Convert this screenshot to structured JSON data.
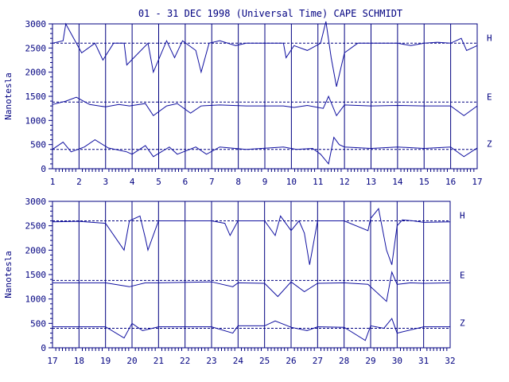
{
  "chart_data": {
    "type": "line",
    "title": "01 - 31 DEC 1998 (Universal Time) CAPE SCHMIDT",
    "ylabel": "Nanotesla",
    "components": [
      "H",
      "E",
      "Z"
    ],
    "ylim": [
      0,
      3000
    ],
    "yticks": [
      0,
      500,
      1000,
      1500,
      2000,
      2500,
      3000
    ],
    "baselines": {
      "H": 2600,
      "E": 1380,
      "Z": 400
    },
    "panels": [
      {
        "xlim": [
          1,
          17
        ],
        "xticks": [
          1,
          2,
          3,
          4,
          5,
          6,
          7,
          8,
          9,
          10,
          11,
          12,
          13,
          14,
          15,
          16,
          17
        ],
        "series": [
          {
            "name": "H",
            "x": [
              1,
              1.4,
              1.5,
              1.9,
              2.1,
              2.6,
              2.9,
              3.3,
              3.7,
              3.8,
              4.6,
              4.8,
              5.3,
              5.6,
              5.9,
              6.4,
              6.6,
              6.9,
              7.3,
              7.9,
              8.3,
              9.7,
              9.8,
              10.1,
              10.6,
              11.1,
              11.3,
              11.5,
              11.7,
              12,
              12.5,
              13,
              14,
              14.5,
              15,
              15.5,
              16,
              16.4,
              16.6,
              17
            ],
            "y": [
              2600,
              2650,
              3000,
              2600,
              2400,
              2600,
              2250,
              2600,
              2600,
              2150,
              2600,
              2000,
              2650,
              2300,
              2650,
              2450,
              2000,
              2600,
              2650,
              2550,
              2600,
              2600,
              2300,
              2550,
              2450,
              2600,
              3050,
              2300,
              1700,
              2400,
              2600,
              2600,
              2600,
              2550,
              2600,
              2620,
              2600,
              2700,
              2450,
              2550
            ]
          },
          {
            "name": "E",
            "x": [
              1,
              1.5,
              1.9,
              2.4,
              3,
              3.5,
              3.9,
              4.5,
              4.8,
              5.3,
              5.7,
              6.2,
              6.6,
              7.3,
              8.3,
              9.7,
              10.1,
              10.6,
              11.2,
              11.4,
              11.7,
              12,
              13,
              14,
              15,
              16,
              16.5,
              17
            ],
            "y": [
              1330,
              1400,
              1480,
              1330,
              1280,
              1330,
              1300,
              1350,
              1100,
              1300,
              1350,
              1150,
              1300,
              1320,
              1300,
              1300,
              1270,
              1310,
              1250,
              1500,
              1100,
              1320,
              1300,
              1310,
              1300,
              1300,
              1100,
              1300
            ]
          },
          {
            "name": "Z",
            "x": [
              1,
              1.4,
              1.7,
              2.2,
              2.6,
              3.1,
              3.8,
              4,
              4.5,
              4.8,
              5.4,
              5.7,
              6.4,
              6.8,
              7.3,
              8.3,
              9.7,
              10.2,
              10.8,
              11.1,
              11.4,
              11.6,
              11.8,
              12,
              13,
              14,
              15,
              16,
              16.5,
              17
            ],
            "y": [
              400,
              550,
              350,
              450,
              600,
              430,
              350,
              300,
              480,
              250,
              450,
              300,
              450,
              300,
              450,
              400,
              450,
              400,
              420,
              300,
              100,
              650,
              500,
              450,
              420,
              450,
              420,
              450,
              250,
              430
            ]
          }
        ]
      },
      {
        "xlim": [
          17,
          32
        ],
        "xticks": [
          17,
          18,
          19,
          20,
          21,
          22,
          23,
          24,
          25,
          26,
          27,
          28,
          29,
          30,
          31,
          32
        ],
        "series": [
          {
            "name": "H",
            "x": [
              17,
              18,
              19,
              19.7,
              19.9,
              20.3,
              20.5,
              20.6,
              21,
              22,
              23,
              23.5,
              23.7,
              24,
              25,
              25.4,
              25.6,
              26,
              26.3,
              26.5,
              26.7,
              27,
              28,
              28.9,
              29,
              29.3,
              29.6,
              29.8,
              30,
              30.2,
              30.6,
              31,
              32
            ],
            "y": [
              2580,
              2590,
              2550,
              2000,
              2600,
              2700,
              2250,
              2000,
              2600,
              2600,
              2600,
              2550,
              2300,
              2600,
              2600,
              2300,
              2700,
              2400,
              2600,
              2350,
              1700,
              2600,
              2600,
              2400,
              2650,
              2850,
              2000,
              1700,
              2500,
              2620,
              2600,
              2570,
              2580
            ]
          },
          {
            "name": "E",
            "x": [
              17,
              19,
              19.9,
              20.5,
              21,
              23,
              23.8,
              24,
              25,
              25.5,
              26,
              26.5,
              27,
              28,
              28.9,
              29.6,
              29.8,
              30,
              30.5,
              31,
              32
            ],
            "y": [
              1330,
              1330,
              1250,
              1330,
              1330,
              1350,
              1250,
              1330,
              1320,
              1050,
              1350,
              1150,
              1320,
              1330,
              1300,
              950,
              1550,
              1300,
              1330,
              1320,
              1330
            ]
          },
          {
            "name": "Z",
            "x": [
              17,
              19,
              19.7,
              20,
              20.4,
              21,
              23,
              23.8,
              24,
              25,
              25.4,
              26,
              26.6,
              27,
              28,
              28.8,
              29,
              29.5,
              29.8,
              30,
              31,
              32
            ],
            "y": [
              430,
              430,
              200,
              500,
              350,
              430,
              430,
              300,
              450,
              450,
              550,
              420,
              350,
              430,
              420,
              150,
              450,
              400,
              600,
              300,
              430,
              430
            ]
          }
        ]
      }
    ]
  }
}
